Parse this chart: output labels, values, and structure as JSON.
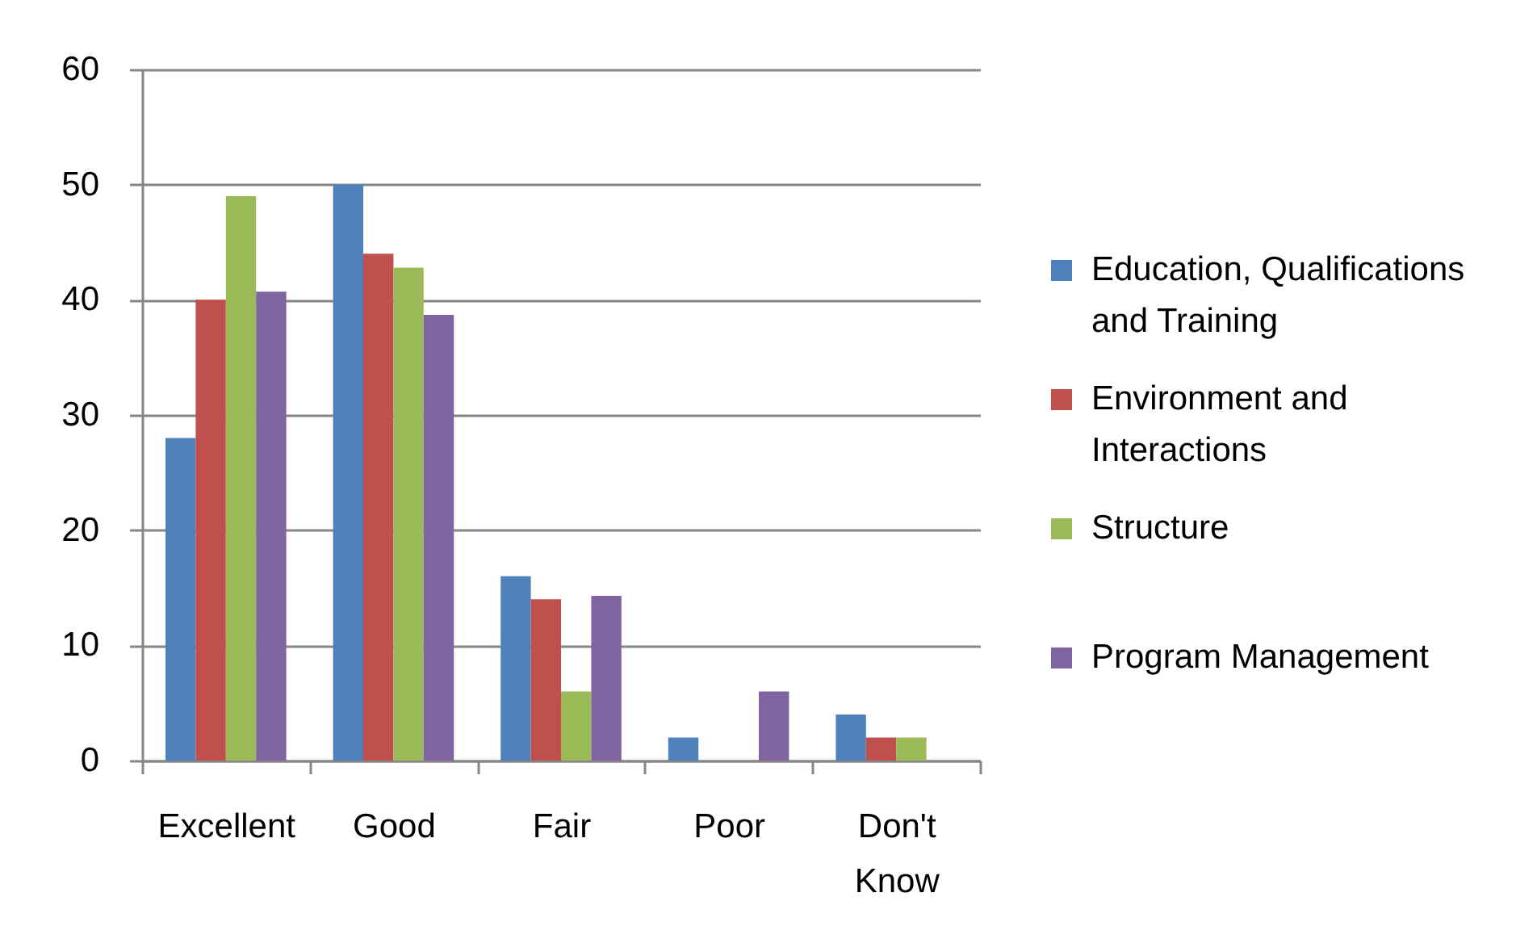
{
  "chart_data": {
    "type": "bar",
    "categories": [
      "Excellent",
      "Good",
      "Fair",
      "Poor",
      "Don't Know"
    ],
    "series": [
      {
        "name": "Education, Qualifications and Training",
        "color": "#4f81bd",
        "values": [
          28,
          50,
          16,
          2,
          4
        ]
      },
      {
        "name": "Environment and Interactions",
        "color": "#c0504d",
        "values": [
          40,
          44,
          14,
          0,
          2
        ]
      },
      {
        "name": "Structure",
        "color": "#9bbb59",
        "values": [
          49,
          42.8,
          6,
          0,
          2
        ]
      },
      {
        "name": "Program Management",
        "color": "#8064a2",
        "values": [
          40.7,
          38.7,
          14.3,
          6,
          0
        ]
      }
    ],
    "ylim": [
      0,
      60
    ],
    "yticks": [
      0,
      10,
      20,
      30,
      40,
      50,
      60
    ],
    "grid": "y",
    "legend": "right"
  }
}
